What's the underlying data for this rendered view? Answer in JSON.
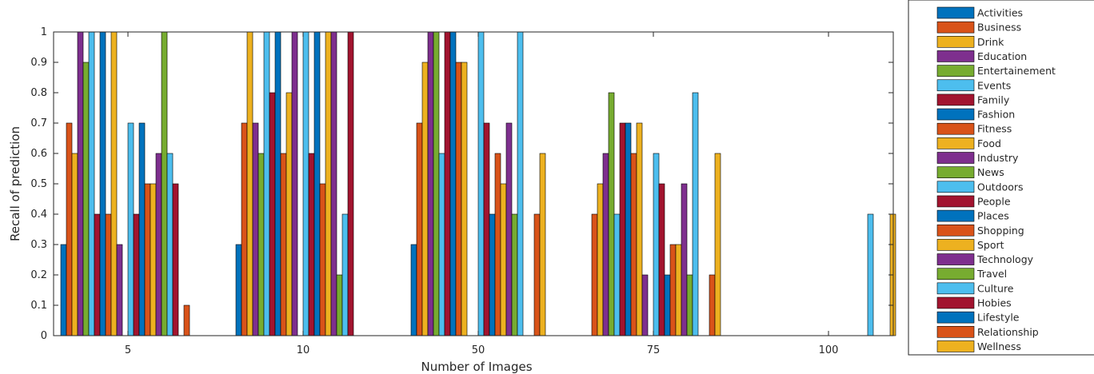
{
  "chart_data": {
    "type": "bar",
    "xlabel": "Number of Images",
    "ylabel": "Recall of prediction",
    "ylim": [
      0,
      1
    ],
    "yticks": [
      0,
      0.1,
      0.2,
      0.3,
      0.4,
      0.5,
      0.6,
      0.7,
      0.8,
      0.9,
      1
    ],
    "grid": false,
    "legend_position": "right",
    "categories": [
      "5",
      "10",
      "50",
      "75",
      "100"
    ],
    "series": [
      {
        "name": "Activities",
        "color": "#0072BD",
        "values": [
          0.3,
          0.3,
          0.3,
          0,
          0
        ]
      },
      {
        "name": "Business",
        "color": "#D95319",
        "values": [
          0.7,
          0.7,
          0.7,
          0.4,
          0
        ]
      },
      {
        "name": "Drink",
        "color": "#EDB120",
        "values": [
          0.6,
          1.0,
          0.9,
          0.5,
          0
        ]
      },
      {
        "name": "Education",
        "color": "#7E2F8E",
        "values": [
          1.0,
          0.7,
          1.0,
          0.6,
          0
        ]
      },
      {
        "name": "Entertainement",
        "color": "#77AC30",
        "values": [
          0.9,
          0.6,
          1.0,
          0.8,
          0
        ]
      },
      {
        "name": "Events",
        "color": "#4DBEEE",
        "values": [
          1.0,
          1.0,
          0.6,
          0.4,
          0
        ]
      },
      {
        "name": "Family",
        "color": "#A2142F",
        "values": [
          0.4,
          0.8,
          1.0,
          0.7,
          0
        ]
      },
      {
        "name": "Fashion",
        "color": "#0072BD",
        "values": [
          1.0,
          1.0,
          1.0,
          0.7,
          0
        ]
      },
      {
        "name": "Fitness",
        "color": "#D95319",
        "values": [
          0.4,
          0.6,
          0.9,
          0.6,
          0
        ]
      },
      {
        "name": "Food",
        "color": "#EDB120",
        "values": [
          1.0,
          0.8,
          0.9,
          0.7,
          0
        ]
      },
      {
        "name": "Industry",
        "color": "#7E2F8E",
        "values": [
          0.3,
          1.0,
          0,
          0.2,
          0
        ]
      },
      {
        "name": "News",
        "color": "#77AC30",
        "values": [
          0,
          0,
          0,
          0,
          0
        ]
      },
      {
        "name": "Outdoors",
        "color": "#4DBEEE",
        "values": [
          0.7,
          1.0,
          1.0,
          0.6,
          0
        ]
      },
      {
        "name": "People",
        "color": "#A2142F",
        "values": [
          0.4,
          0.6,
          0.7,
          0.5,
          0
        ]
      },
      {
        "name": "Places",
        "color": "#0072BD",
        "values": [
          0.7,
          1.0,
          0.4,
          0.2,
          0
        ]
      },
      {
        "name": "Shopping",
        "color": "#D95319",
        "values": [
          0.5,
          0.5,
          0.6,
          0.3,
          0
        ]
      },
      {
        "name": "Sport",
        "color": "#EDB120",
        "values": [
          0.5,
          1.0,
          0.5,
          0.3,
          0
        ]
      },
      {
        "name": "Technology",
        "color": "#7E2F8E",
        "values": [
          0.6,
          1.0,
          0.7,
          0.5,
          0
        ]
      },
      {
        "name": "Travel",
        "color": "#77AC30",
        "values": [
          1.0,
          0.2,
          0.4,
          0.2,
          0
        ]
      },
      {
        "name": "Culture",
        "color": "#4DBEEE",
        "values": [
          0.6,
          0.4,
          1.0,
          0.8,
          0.4
        ]
      },
      {
        "name": "Hobies",
        "color": "#A2142F",
        "values": [
          0.5,
          1.0,
          0,
          0,
          0
        ]
      },
      {
        "name": "Lifestyle",
        "color": "#0072BD",
        "values": [
          0,
          0,
          0,
          0,
          0
        ]
      },
      {
        "name": "Relationship",
        "color": "#D95319",
        "values": [
          0.1,
          0,
          0.4,
          0.2,
          0
        ]
      },
      {
        "name": "Wellness",
        "color": "#EDB120",
        "values": [
          0,
          0,
          0.6,
          0.6,
          0.4
        ]
      }
    ]
  }
}
